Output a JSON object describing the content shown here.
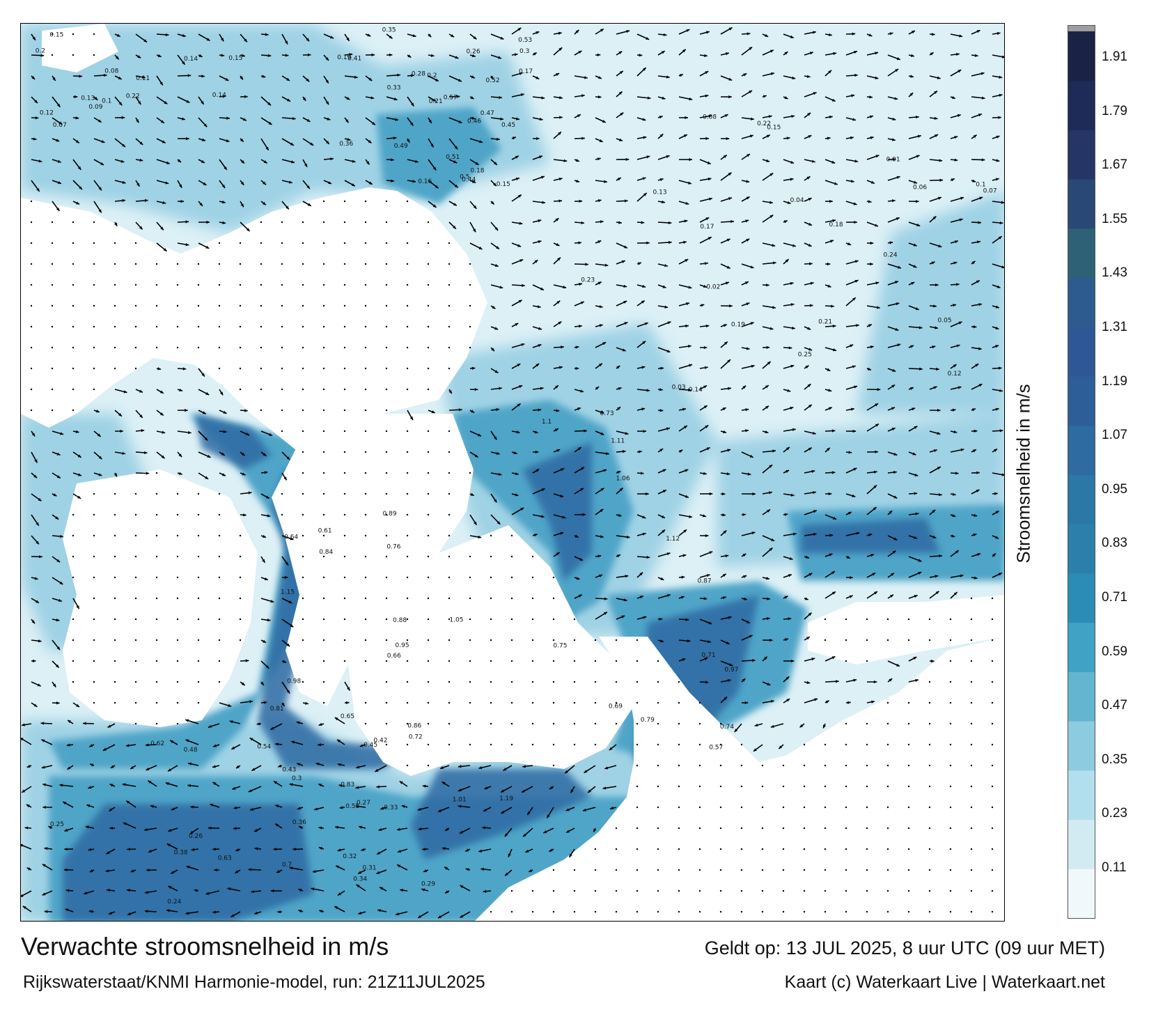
{
  "header": {
    "title": "Verwachte stroomsnelheid in m/s",
    "subtitle": "Rijkswaterstaat/KNMI Harmonie-model, run: 21Z11JUL2025",
    "valid_time": "Geldt op: 13 JUL 2025, 8 uur UTC (09 uur MET)",
    "credit": "Kaart (c) Waterkaart Live | Waterkaart.net"
  },
  "colorbar": {
    "label": "Stroomsnelheid in m/s",
    "ticks": [
      "1.91",
      "1.79",
      "1.67",
      "1.55",
      "1.43",
      "1.31",
      "1.19",
      "1.07",
      "0.95",
      "0.83",
      "0.71",
      "0.59",
      "0.47",
      "0.35",
      "0.23",
      "0.11"
    ],
    "bands": [
      "#f1f8fb",
      "#d2ebf3",
      "#b2dfed",
      "#8ccbe0",
      "#63b5d0",
      "#3ea3c4",
      "#2b8db5",
      "#2a80ab",
      "#2b77a6",
      "#2d6ba0",
      "#2e5e98",
      "#2e5895",
      "#2d5b8f",
      "#2f6176",
      "#294875",
      "#253566",
      "#1e2a57",
      "#1a2346"
    ],
    "top_color": "#9e9e9e"
  },
  "colors": {
    "land": "#ffffff",
    "water_light": "#d4ecf4",
    "water_mid": "#5fb1cf",
    "water_dark": "#2b5f96",
    "arrow": "#000000",
    "frame": "#000000"
  },
  "map_labels": {
    "top_left": [
      "0.22",
      "0.14",
      "0.15",
      "0.08",
      "0.07",
      "0.13",
      "0.1",
      "0.12",
      "0.11",
      "0.14",
      "0.2",
      "0.09",
      "0.15"
    ],
    "top_center": [
      "0.15",
      "0.16",
      "0.18",
      "0.19",
      "0.17",
      "0.21",
      "0.2",
      "0.45",
      "0.33",
      "0.35",
      "0.46",
      "0.47",
      "0.57",
      "0.49",
      "0.51",
      "0.52",
      "0.41",
      "0.53",
      "0.44",
      "0.5",
      "0.36",
      "0.28",
      "0.3",
      "0.26"
    ],
    "north_east": [
      "0.01",
      "0.05",
      "0.04",
      "0.02",
      "0.03",
      "0.06",
      "0.08",
      "0.07",
      "0.1",
      "0.12",
      "0.13",
      "0.14",
      "0.15",
      "0.17",
      "0.18",
      "0.19",
      "0.23",
      "0.21",
      "0.25",
      "0.22",
      "0.24"
    ],
    "scheldt_and_coast": [
      "0.79",
      "0.86",
      "0.65",
      "0.64",
      "0.57",
      "0.71",
      "0.73",
      "0.66",
      "0.61",
      "0.84",
      "0.83",
      "0.69",
      "0.72",
      "0.75",
      "0.74",
      "0.76",
      "0.81",
      "0.88",
      "0.89",
      "0.87",
      "0.95",
      "0.97",
      "0.98",
      "1.01",
      "1.05",
      "1.06",
      "1.1",
      "1.11",
      "1.12",
      "1.15",
      "1.19"
    ],
    "south_west": [
      "0.27",
      "0.31",
      "0.34",
      "0.38",
      "0.33",
      "0.3",
      "0.25",
      "0.36",
      "0.24",
      "0.26",
      "0.29",
      "0.32",
      "0.42",
      "0.43",
      "0.45",
      "0.48",
      "0.55",
      "0.54",
      "0.62",
      "0.63",
      "0.7"
    ]
  }
}
